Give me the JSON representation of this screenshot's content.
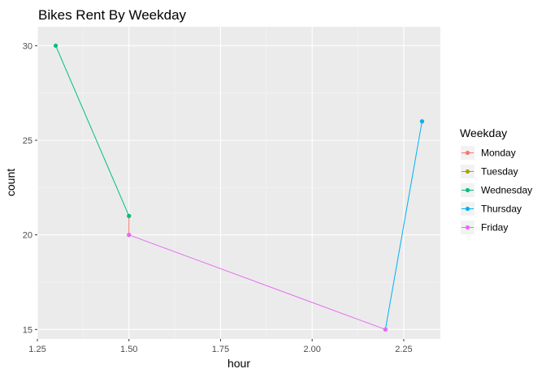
{
  "chart_data": {
    "type": "line",
    "title": "Bikes Rent By Weekday",
    "xlabel": "hour",
    "ylabel": "count",
    "xlim": [
      1.25,
      2.35
    ],
    "ylim": [
      14.5,
      31
    ],
    "x_ticks": [
      1.25,
      1.5,
      1.75,
      2.0,
      2.25
    ],
    "x_tick_labels": [
      "1.25",
      "1.50",
      "1.75",
      "2.00",
      "2.25"
    ],
    "y_ticks": [
      15,
      20,
      25,
      30
    ],
    "y_tick_labels": [
      "15",
      "20",
      "25",
      "30"
    ],
    "grid": true,
    "legend": {
      "title": "Weekday",
      "position": "right"
    },
    "series": [
      {
        "name": "Monday",
        "color": "#F8766D",
        "points": [
          [
            1.5,
            21
          ],
          [
            1.5,
            20
          ]
        ]
      },
      {
        "name": "Tuesday",
        "color": "#A3A500",
        "points": [
          [
            2.3,
            26
          ]
        ]
      },
      {
        "name": "Wednesday",
        "color": "#00BF7D",
        "points": [
          [
            1.3,
            30
          ],
          [
            1.5,
            21
          ]
        ]
      },
      {
        "name": "Thursday",
        "color": "#00B0F6",
        "points": [
          [
            2.2,
            15
          ],
          [
            2.3,
            26
          ]
        ]
      },
      {
        "name": "Friday",
        "color": "#E76BF3",
        "points": [
          [
            1.5,
            20
          ],
          [
            2.2,
            15
          ]
        ]
      }
    ]
  }
}
